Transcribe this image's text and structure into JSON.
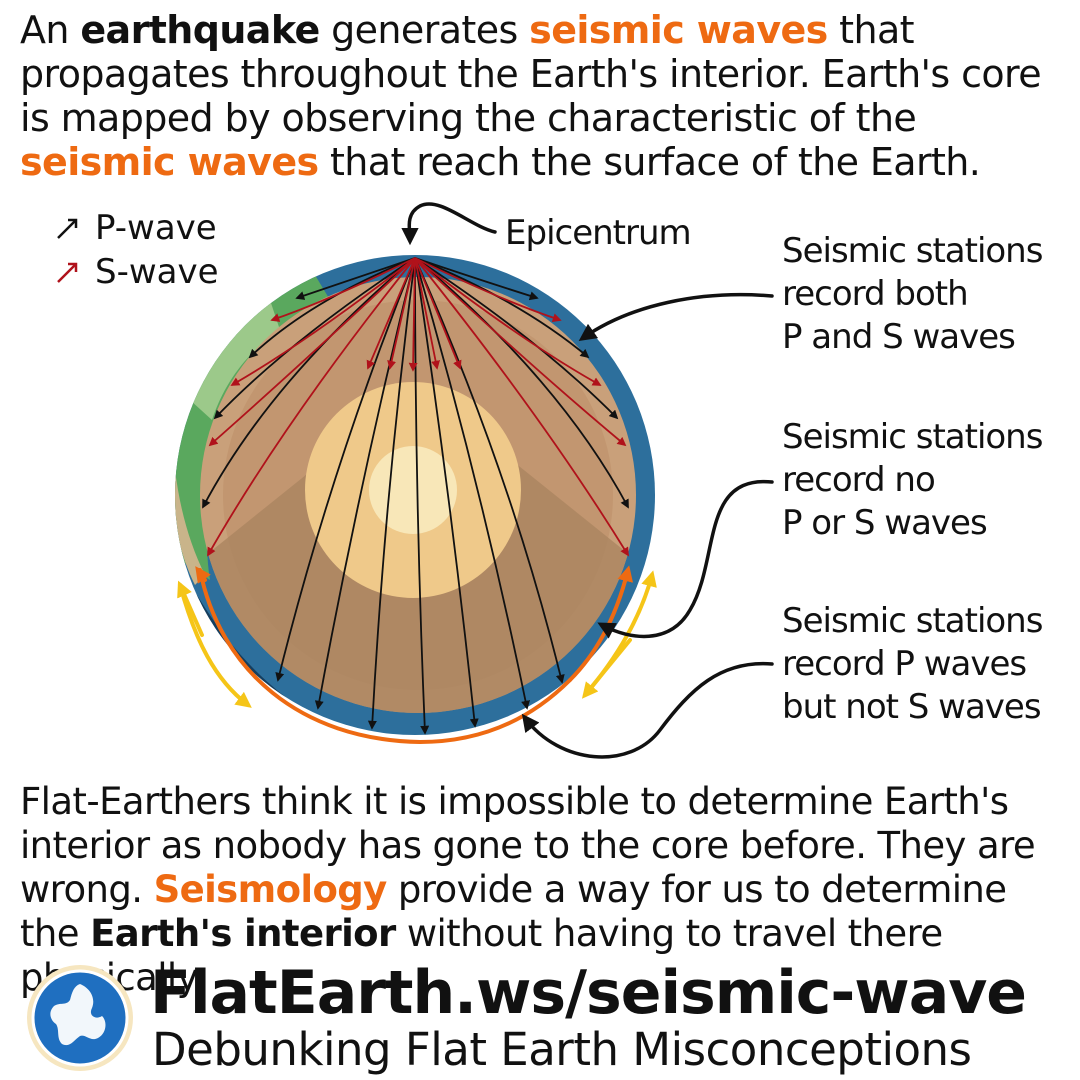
{
  "intro": {
    "t1": "An ",
    "b1": "earthquake",
    "t2": " generates ",
    "h1": "seismic waves",
    "t3": " that propagates throughout the Earth's interior. Earth's core is mapped by observing the characteristic of the ",
    "h2": "seismic waves",
    "t4": " that reach the surface of the Earth."
  },
  "legend": {
    "p_wave": "P-wave",
    "s_wave": "S-wave"
  },
  "labels": {
    "epicentrum": "Epicentrum",
    "both": [
      "Seismic stations",
      "record both",
      "P and S waves"
    ],
    "none": [
      "Seismic stations",
      "record no",
      "P or S waves"
    ],
    "p_only": [
      "Seismic stations",
      "record P waves",
      "but not S waves"
    ]
  },
  "outro": {
    "t1": "Flat-Earthers think it is impossible to determine Earth's interior as nobody has gone to the core before. They are wrong. ",
    "h1": "Seismology",
    "t2": " provide a way for us to determine the ",
    "b1": "Earth's interior",
    "t3": " without having to travel there physically."
  },
  "footer": {
    "url": "FlatEarth.ws/seismic-wave",
    "tagline": "Debunking Flat Earth Misconceptions"
  },
  "colors": {
    "accent": "#ee6a12",
    "p_wave": "#111111",
    "s_wave": "#b0121b",
    "mantle": "#c9a07a",
    "outer_core": "#efc98a",
    "inner_core": "#f8e7b8",
    "shadow_zone_arrow": "#f5c518",
    "p_only_arrow": "#ee6a12"
  },
  "icons": {
    "logo": "flat-earth-globe-icon"
  }
}
